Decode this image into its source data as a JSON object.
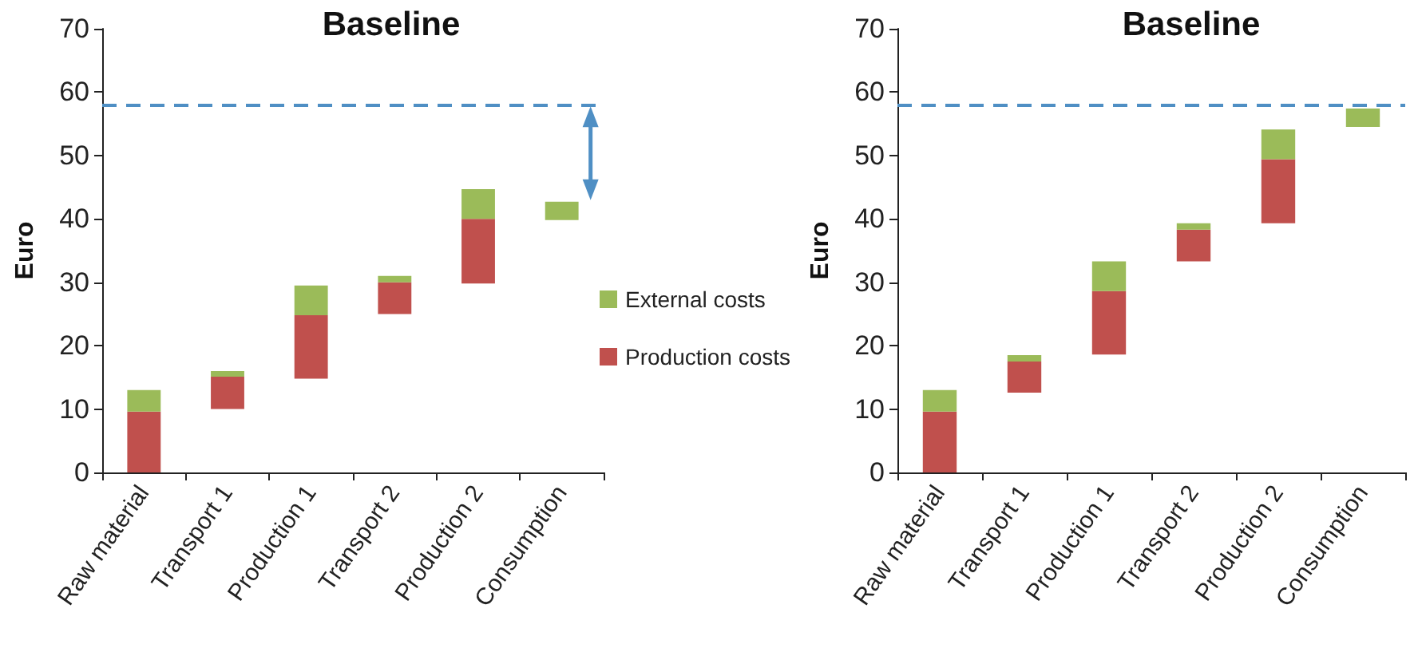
{
  "chart_data": [
    {
      "type": "bar",
      "title": "Baseline",
      "ylabel": "Euro",
      "categories": [
        "Raw material",
        "Transport 1",
        "Production 1",
        "Transport 2",
        "Production 2",
        "Consumption"
      ],
      "series": [
        {
          "name": "Production costs",
          "color": "#c0504d",
          "base": [
            0,
            10.0,
            14.8,
            25.0,
            29.8,
            null
          ],
          "values": [
            9.6,
            5.1,
            10.0,
            5.0,
            10.2,
            null
          ]
        },
        {
          "name": "External costs",
          "color": "#9bbb59",
          "base": [
            9.6,
            15.1,
            24.8,
            30.0,
            40.0,
            39.8
          ],
          "values": [
            3.4,
            0.9,
            4.7,
            1.0,
            4.7,
            2.9
          ]
        }
      ],
      "ylim": [
        0,
        70
      ],
      "yticks": [
        0,
        10,
        20,
        30,
        40,
        50,
        60,
        70
      ],
      "grid": false,
      "legend": "right",
      "ref_lines": [
        {
          "axis": "y",
          "value": 58,
          "label": null,
          "color": "#4f8fc4",
          "line_style": "dashed"
        }
      ]
    },
    {
      "type": "bar",
      "title": "Baseline",
      "ylabel": "Euro",
      "categories": [
        "Raw material",
        "Transport 1",
        "Production 1",
        "Transport 2",
        "Production 2",
        "Consumption"
      ],
      "series": [
        {
          "color": "#c0504d",
          "base": [
            0,
            12.6,
            18.6,
            33.3,
            39.3,
            null
          ],
          "values": [
            9.6,
            4.9,
            10.0,
            5.0,
            10.1,
            null
          ]
        },
        {
          "color": "#9bbb59",
          "base": [
            9.6,
            17.5,
            28.6,
            38.3,
            49.4,
            54.5
          ],
          "values": [
            3.4,
            1.0,
            4.7,
            1.0,
            4.7,
            2.9
          ]
        }
      ],
      "ylim": [
        0,
        70
      ],
      "yticks": [
        0,
        10,
        20,
        30,
        40,
        50,
        60,
        70
      ],
      "grid": false,
      "legend": false,
      "ref_lines": [
        {
          "axis": "y",
          "value": 58,
          "label": null,
          "color": "#4f8fc4",
          "line_style": "dashed"
        }
      ]
    }
  ]
}
